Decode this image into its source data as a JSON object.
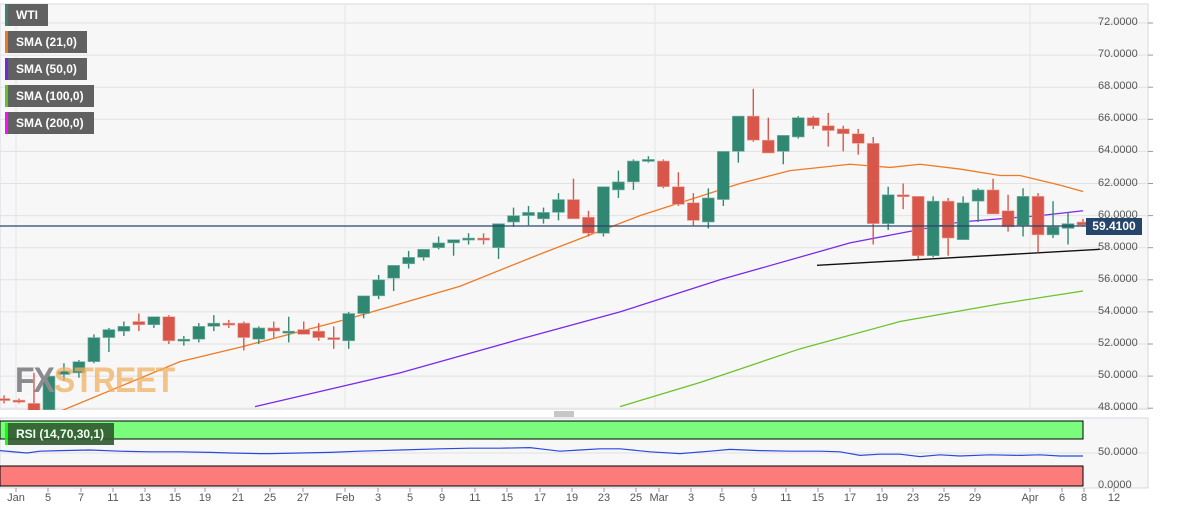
{
  "legend": {
    "items": [
      {
        "label": "WTI",
        "color": "#2e7d6b"
      },
      {
        "label": "SMA (21,0)",
        "color": "#f0701a"
      },
      {
        "label": "SMA (50,0)",
        "color": "#6a1de0"
      },
      {
        "label": "SMA (100,0)",
        "color": "#5cc021"
      },
      {
        "label": "SMA (200,0)",
        "color": "#ff00ff"
      }
    ],
    "rsi_label": "RSI (14,70,30,1)"
  },
  "watermark": {
    "fx": "FX",
    "street": "STREET"
  },
  "current_price": "59.4100",
  "colors": {
    "up": "#318872",
    "down": "#d9574a",
    "sma21": "#f07a22",
    "sma50": "#7a2ae8",
    "sma100": "#6cc22c",
    "trendline": "#111111",
    "price_line": "#25456b",
    "rsi_line": "#2a49e0",
    "rsi_overbought": "#7cfc7c",
    "rsi_oversold": "#fc7c7c"
  },
  "chart_data": {
    "type": "candlestick",
    "title": "WTI",
    "xlabel": "",
    "ylabel": "",
    "ylim": [
      48,
      73
    ],
    "y_ticks": [
      "72.0000",
      "70.0000",
      "68.0000",
      "66.0000",
      "64.0000",
      "62.0000",
      "60.0000",
      "58.0000",
      "56.0000",
      "54.0000",
      "52.0000",
      "50.0000",
      "48.0000"
    ],
    "x_ticks": [
      "Jan",
      "5",
      "7",
      "11",
      "13",
      "15",
      "19",
      "21",
      "25",
      "27",
      "Feb",
      "3",
      "5",
      "9",
      "11",
      "15",
      "17",
      "19",
      "23",
      "25",
      "Mar",
      "3",
      "5",
      "9",
      "11",
      "15",
      "17",
      "19",
      "23",
      "25",
      "29",
      "Apr",
      "6",
      "8",
      "12"
    ],
    "candles": [
      {
        "o": 48.6,
        "h": 48.8,
        "l": 48.3,
        "c": 48.5
      },
      {
        "o": 48.5,
        "h": 48.6,
        "l": 48.3,
        "c": 48.4
      },
      {
        "o": 48.3,
        "h": 50.2,
        "l": 47.6,
        "c": 47.7
      },
      {
        "o": 47.9,
        "h": 50.2,
        "l": 47.6,
        "c": 50.0
      },
      {
        "o": 50.1,
        "h": 50.8,
        "l": 49.7,
        "c": 50.3
      },
      {
        "o": 50.2,
        "h": 51.0,
        "l": 49.9,
        "c": 50.9
      },
      {
        "o": 50.9,
        "h": 52.6,
        "l": 50.8,
        "c": 52.4
      },
      {
        "o": 52.4,
        "h": 53.0,
        "l": 51.5,
        "c": 52.9
      },
      {
        "o": 52.8,
        "h": 53.4,
        "l": 52.5,
        "c": 53.1
      },
      {
        "o": 53.4,
        "h": 53.9,
        "l": 52.8,
        "c": 53.2
      },
      {
        "o": 53.2,
        "h": 53.7,
        "l": 53.0,
        "c": 53.7
      },
      {
        "o": 53.7,
        "h": 53.8,
        "l": 52.0,
        "c": 52.2
      },
      {
        "o": 52.2,
        "h": 52.5,
        "l": 51.9,
        "c": 52.3
      },
      {
        "o": 52.3,
        "h": 53.3,
        "l": 52.1,
        "c": 53.1
      },
      {
        "o": 53.1,
        "h": 53.8,
        "l": 52.8,
        "c": 53.3
      },
      {
        "o": 53.3,
        "h": 53.5,
        "l": 53.0,
        "c": 53.2
      },
      {
        "o": 53.3,
        "h": 53.4,
        "l": 51.6,
        "c": 52.4
      },
      {
        "o": 52.3,
        "h": 53.1,
        "l": 52.0,
        "c": 53.0
      },
      {
        "o": 53.0,
        "h": 53.4,
        "l": 52.4,
        "c": 52.8
      },
      {
        "o": 52.7,
        "h": 53.7,
        "l": 52.1,
        "c": 52.8
      },
      {
        "o": 52.9,
        "h": 53.4,
        "l": 52.6,
        "c": 52.6
      },
      {
        "o": 52.8,
        "h": 53.3,
        "l": 52.2,
        "c": 52.4
      },
      {
        "o": 52.4,
        "h": 53.1,
        "l": 51.7,
        "c": 52.3
      },
      {
        "o": 52.2,
        "h": 54.0,
        "l": 51.7,
        "c": 53.9
      },
      {
        "o": 53.9,
        "h": 54.8,
        "l": 53.6,
        "c": 55.0
      },
      {
        "o": 55.0,
        "h": 56.3,
        "l": 54.8,
        "c": 56.0
      },
      {
        "o": 56.1,
        "h": 56.9,
        "l": 55.3,
        "c": 56.9
      },
      {
        "o": 57.0,
        "h": 57.8,
        "l": 56.7,
        "c": 57.4
      },
      {
        "o": 57.4,
        "h": 57.9,
        "l": 57.2,
        "c": 57.9
      },
      {
        "o": 58.0,
        "h": 58.7,
        "l": 57.9,
        "c": 58.3
      },
      {
        "o": 58.3,
        "h": 58.5,
        "l": 57.5,
        "c": 58.5
      },
      {
        "o": 58.5,
        "h": 58.9,
        "l": 58.2,
        "c": 58.6
      },
      {
        "o": 58.6,
        "h": 58.9,
        "l": 58.2,
        "c": 58.5
      },
      {
        "o": 58.0,
        "h": 59.5,
        "l": 57.3,
        "c": 59.5
      },
      {
        "o": 59.6,
        "h": 60.5,
        "l": 59.3,
        "c": 60.0
      },
      {
        "o": 60.0,
        "h": 60.6,
        "l": 59.4,
        "c": 60.2
      },
      {
        "o": 59.8,
        "h": 60.5,
        "l": 59.5,
        "c": 60.2
      },
      {
        "o": 60.2,
        "h": 61.4,
        "l": 59.7,
        "c": 61.0
      },
      {
        "o": 61.0,
        "h": 62.3,
        "l": 60.6,
        "c": 59.8
      },
      {
        "o": 59.9,
        "h": 60.3,
        "l": 58.7,
        "c": 58.9
      },
      {
        "o": 58.9,
        "h": 61.8,
        "l": 58.7,
        "c": 61.8
      },
      {
        "o": 61.6,
        "h": 62.8,
        "l": 61.1,
        "c": 62.1
      },
      {
        "o": 62.1,
        "h": 63.5,
        "l": 61.6,
        "c": 63.4
      },
      {
        "o": 63.5,
        "h": 63.7,
        "l": 63.3,
        "c": 63.5
      },
      {
        "o": 63.4,
        "h": 63.5,
        "l": 61.7,
        "c": 61.8
      },
      {
        "o": 61.8,
        "h": 62.7,
        "l": 60.6,
        "c": 60.7
      },
      {
        "o": 60.8,
        "h": 61.4,
        "l": 59.4,
        "c": 59.7
      },
      {
        "o": 59.6,
        "h": 61.7,
        "l": 59.2,
        "c": 61.1
      },
      {
        "o": 61.0,
        "h": 62.6,
        "l": 60.6,
        "c": 64.0
      },
      {
        "o": 64.0,
        "h": 64.9,
        "l": 63.3,
        "c": 66.2
      },
      {
        "o": 66.2,
        "h": 67.9,
        "l": 64.6,
        "c": 64.7
      },
      {
        "o": 64.7,
        "h": 66.1,
        "l": 63.9,
        "c": 63.9
      },
      {
        "o": 64.0,
        "h": 65.0,
        "l": 63.2,
        "c": 65.0
      },
      {
        "o": 64.9,
        "h": 66.2,
        "l": 64.8,
        "c": 66.1
      },
      {
        "o": 66.1,
        "h": 66.2,
        "l": 65.4,
        "c": 65.6
      },
      {
        "o": 65.6,
        "h": 66.4,
        "l": 64.3,
        "c": 65.3
      },
      {
        "o": 65.4,
        "h": 65.6,
        "l": 64.0,
        "c": 65.1
      },
      {
        "o": 65.1,
        "h": 65.4,
        "l": 63.8,
        "c": 64.5
      },
      {
        "o": 64.5,
        "h": 64.9,
        "l": 58.2,
        "c": 59.5
      },
      {
        "o": 59.5,
        "h": 61.8,
        "l": 59.1,
        "c": 61.3
      },
      {
        "o": 61.3,
        "h": 62.0,
        "l": 60.4,
        "c": 61.2
      },
      {
        "o": 61.2,
        "h": 61.2,
        "l": 57.3,
        "c": 57.5
      },
      {
        "o": 57.5,
        "h": 61.2,
        "l": 57.4,
        "c": 60.9
      },
      {
        "o": 60.9,
        "h": 61.1,
        "l": 57.5,
        "c": 58.6
      },
      {
        "o": 58.5,
        "h": 61.2,
        "l": 58.5,
        "c": 60.8
      },
      {
        "o": 60.9,
        "h": 61.7,
        "l": 59.6,
        "c": 61.6
      },
      {
        "o": 61.6,
        "h": 62.3,
        "l": 60.4,
        "c": 60.1
      },
      {
        "o": 60.3,
        "h": 61.3,
        "l": 59.0,
        "c": 59.3
      },
      {
        "o": 59.4,
        "h": 61.7,
        "l": 58.7,
        "c": 61.2
      },
      {
        "o": 61.2,
        "h": 61.4,
        "l": 57.7,
        "c": 58.8
      },
      {
        "o": 58.8,
        "h": 60.9,
        "l": 58.6,
        "c": 59.3
      },
      {
        "o": 59.2,
        "h": 60.2,
        "l": 58.2,
        "c": 59.5
      },
      {
        "o": 59.6,
        "h": 59.8,
        "l": 59.3,
        "c": 59.41
      }
    ],
    "sma21": [
      [
        0,
        47.7
      ],
      [
        60,
        47.8
      ],
      [
        180,
        50.9
      ],
      [
        240,
        51.8
      ],
      [
        350,
        53.6
      ],
      [
        460,
        55.6
      ],
      [
        540,
        57.6
      ],
      [
        640,
        60.0
      ],
      [
        740,
        62.0
      ],
      [
        790,
        62.8
      ],
      [
        850,
        63.2
      ],
      [
        890,
        63.0
      ],
      [
        920,
        63.2
      ],
      [
        960,
        62.9
      ],
      [
        1000,
        62.5
      ],
      [
        1020,
        62.5
      ],
      [
        1060,
        61.9
      ],
      [
        1083,
        61.5
      ]
    ],
    "sma50": [
      [
        255,
        48.1
      ],
      [
        400,
        50.2
      ],
      [
        520,
        52.3
      ],
      [
        620,
        54.0
      ],
      [
        720,
        56.0
      ],
      [
        850,
        58.3
      ],
      [
        900,
        58.9
      ],
      [
        960,
        59.6
      ],
      [
        1040,
        60.0
      ],
      [
        1083,
        60.3
      ]
    ],
    "sma100": [
      [
        620,
        48.1
      ],
      [
        700,
        49.6
      ],
      [
        800,
        51.7
      ],
      [
        900,
        53.4
      ],
      [
        1000,
        54.5
      ],
      [
        1083,
        55.3
      ]
    ],
    "trendline": [
      [
        817,
        56.9
      ],
      [
        1100,
        57.9
      ]
    ],
    "rsi": {
      "levels": {
        "overbought": 70,
        "oversold": 30,
        "mid": 50
      },
      "y_ticks": [
        "50.0000",
        "0.0000"
      ],
      "values": [
        [
          0,
          59
        ],
        [
          27,
          55
        ],
        [
          40,
          58
        ],
        [
          60,
          59
        ],
        [
          90,
          60
        ],
        [
          120,
          58
        ],
        [
          150,
          57
        ],
        [
          180,
          57
        ],
        [
          210,
          56
        ],
        [
          230,
          55
        ],
        [
          260,
          54
        ],
        [
          270,
          54
        ],
        [
          300,
          55
        ],
        [
          330,
          56
        ],
        [
          360,
          58
        ],
        [
          400,
          60
        ],
        [
          440,
          62
        ],
        [
          470,
          63
        ],
        [
          500,
          63
        ],
        [
          530,
          64
        ],
        [
          540,
          62
        ],
        [
          560,
          58
        ],
        [
          580,
          60
        ],
        [
          600,
          62
        ],
        [
          620,
          62
        ],
        [
          650,
          57
        ],
        [
          680,
          54
        ],
        [
          710,
          58
        ],
        [
          730,
          61
        ],
        [
          760,
          59
        ],
        [
          790,
          58
        ],
        [
          820,
          58
        ],
        [
          840,
          57
        ],
        [
          860,
          51
        ],
        [
          880,
          53
        ],
        [
          900,
          53
        ],
        [
          920,
          49
        ],
        [
          940,
          52
        ],
        [
          960,
          50
        ],
        [
          990,
          52
        ],
        [
          1020,
          51
        ],
        [
          1040,
          52
        ],
        [
          1060,
          50
        ],
        [
          1083,
          50
        ]
      ]
    }
  }
}
